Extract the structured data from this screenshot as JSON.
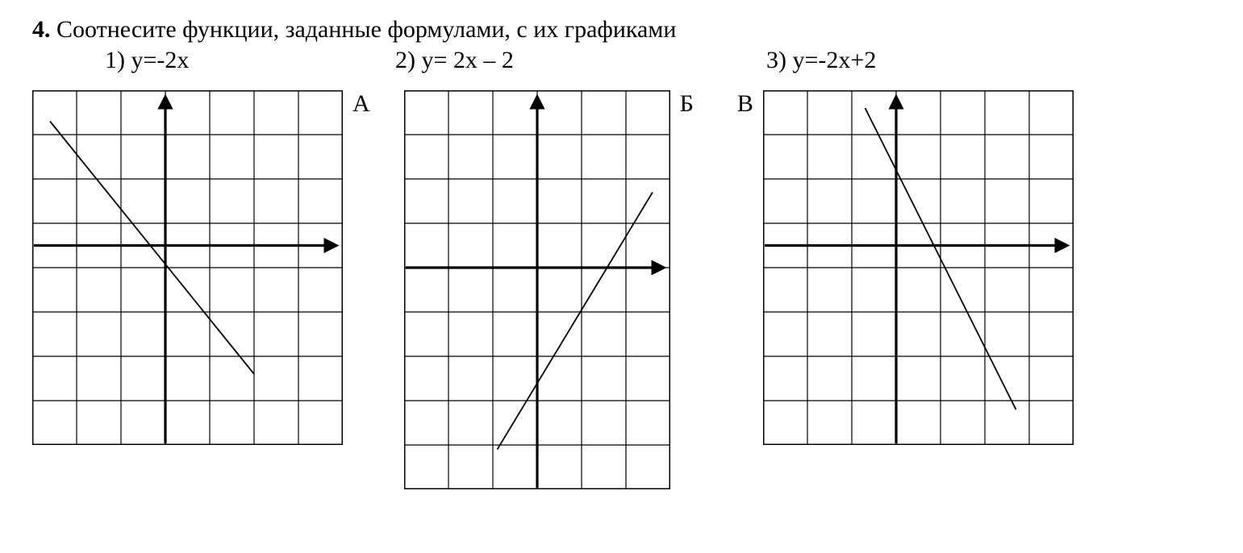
{
  "problem": {
    "number": "4.",
    "text": "Соотнесите функции, заданные формулами, с их графиками"
  },
  "formulas": {
    "f1": "1) y=-2x",
    "f2": "2) y= 2x – 2",
    "f3": "3) y=-2x+2"
  },
  "labels": {
    "A": "А",
    "B": "Б",
    "V": "В"
  },
  "grid": {
    "cell": 55,
    "stroke": "#000000",
    "bg": "#ffffff"
  },
  "charts": {
    "A": {
      "cols": 7,
      "rows": 8,
      "origin_col": 3,
      "origin_row": 3.5,
      "y_arrow_top_row": 0.15,
      "x_arrow_right_col": 6.85,
      "line": {
        "x1_col": 0.4,
        "y1_row": 0.7,
        "x2_col": 5.0,
        "y2_row": 6.4
      }
    },
    "B": {
      "cols": 6,
      "rows": 9,
      "origin_col": 3,
      "origin_row": 4,
      "y_arrow_top_row": 0.15,
      "x_arrow_right_col": 5.85,
      "line": {
        "x1_col": 2.1,
        "y1_row": 8.1,
        "x2_col": 5.6,
        "y2_row": 2.3
      }
    },
    "V": {
      "cols": 7,
      "rows": 8,
      "origin_col": 3,
      "origin_row": 3.5,
      "y_arrow_top_row": 0.15,
      "x_arrow_right_col": 6.85,
      "line": {
        "x1_col": 2.3,
        "y1_row": 0.4,
        "x2_col": 5.7,
        "y2_row": 7.2
      }
    }
  }
}
